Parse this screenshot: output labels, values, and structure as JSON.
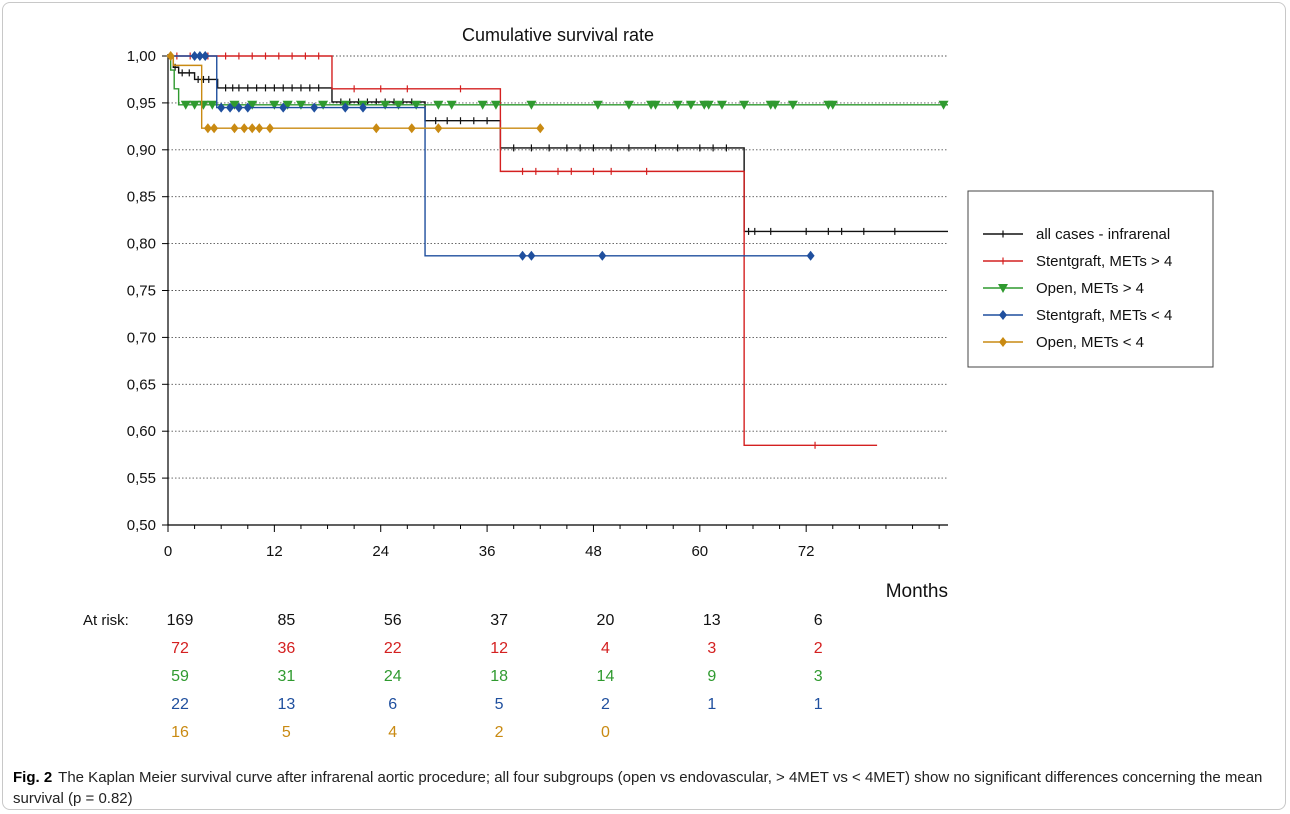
{
  "caption": {
    "label": "Fig. 2",
    "text": "The Kaplan Meier survival curve after infrarenal aortic procedure; all four subgroups (open vs endovascular, > 4MET vs < 4MET) show no significant differences concerning the mean survival (p = 0.82)"
  },
  "chart_data": {
    "type": "line",
    "step": true,
    "title": "Cumulative survival rate",
    "xlabel": "Months",
    "ylabel": "",
    "xlim": [
      0,
      88
    ],
    "ylim": [
      0.5,
      1.0
    ],
    "x_ticks": [
      0,
      12,
      24,
      36,
      48,
      60,
      72
    ],
    "x_tick_labels": [
      "0",
      "12",
      "24",
      "36",
      "48",
      "60",
      "72"
    ],
    "y_ticks": [
      0.5,
      0.55,
      0.6,
      0.65,
      0.7,
      0.75,
      0.8,
      0.85,
      0.9,
      0.95,
      1.0
    ],
    "y_tick_labels": [
      "0,50",
      "0,55",
      "0,60",
      "0,65",
      "0,70",
      "0,75",
      "0,80",
      "0,85",
      "0,90",
      "0,95",
      "1,00"
    ],
    "grid": "dotted horizontal",
    "legend_position": "right",
    "series": [
      {
        "name": "all cases - infrarenal",
        "color": "#111111",
        "marker": "tick",
        "steps": [
          [
            0,
            1.0
          ],
          [
            0.6,
            0.988
          ],
          [
            1.2,
            0.982
          ],
          [
            3.0,
            0.975
          ],
          [
            5.6,
            0.966
          ],
          [
            18.5,
            0.951
          ],
          [
            29.0,
            0.931
          ],
          [
            37.5,
            0.902
          ],
          [
            65.0,
            0.813
          ],
          [
            88.0,
            0.813
          ]
        ],
        "censored": [
          0.8,
          1.6,
          2.4,
          3.4,
          4.0,
          4.6,
          6.5,
          7.3,
          8.0,
          9.0,
          10.0,
          11.0,
          12.0,
          13.0,
          14.0,
          15.0,
          16.0,
          17.0,
          19.5,
          20.5,
          21.5,
          22.5,
          23.5,
          24.5,
          25.5,
          26.5,
          27.5,
          30.2,
          31.5,
          33.0,
          34.5,
          36.0,
          39.0,
          41.0,
          43.0,
          45.0,
          46.5,
          48.0,
          50.0,
          52.0,
          55.0,
          57.5,
          60.0,
          61.5,
          63.0,
          65.5,
          66.2,
          68.0,
          72.0,
          74.5,
          76.0,
          78.5,
          82.0
        ]
      },
      {
        "name": "Stentgraft, METs > 4",
        "color": "#d42020",
        "marker": "tick",
        "steps": [
          [
            0,
            1.0
          ],
          [
            18.5,
            0.965
          ],
          [
            37.5,
            0.877
          ],
          [
            65.0,
            0.585
          ],
          [
            80.0,
            0.585
          ]
        ],
        "censored": [
          1.0,
          2.5,
          4.5,
          6.5,
          8.0,
          9.5,
          11.0,
          12.5,
          14.0,
          15.5,
          17.0,
          21.0,
          24.0,
          27.0,
          33.0,
          40.0,
          41.5,
          44.0,
          45.5,
          48.0,
          50.0,
          54.0,
          73.0
        ]
      },
      {
        "name": "Open, METs > 4",
        "color": "#2f9a2f",
        "marker": "triangle-down",
        "steps": [
          [
            0,
            1.0
          ],
          [
            0.3,
            0.985
          ],
          [
            0.7,
            0.965
          ],
          [
            1.2,
            0.948
          ],
          [
            88.0,
            0.948
          ]
        ],
        "censored": [
          2.0,
          3.0,
          4.0,
          5.0,
          7.5,
          9.5,
          12.0,
          13.5,
          15.0,
          17.5,
          20.0,
          22.0,
          24.5,
          26.0,
          28.0,
          30.5,
          32.0,
          35.5,
          37.0,
          41.0,
          48.5,
          52.0,
          54.5,
          55.0,
          57.5,
          59.0,
          60.5,
          61.0,
          62.5,
          65.0,
          68.0,
          68.5,
          70.5,
          74.5,
          75.0,
          87.5
        ]
      },
      {
        "name": "Stentgraft, METs < 4",
        "color": "#1f4f9e",
        "marker": "diamond",
        "steps": [
          [
            0,
            1.0
          ],
          [
            5.5,
            0.945
          ],
          [
            29.0,
            0.787
          ],
          [
            72.5,
            0.787
          ]
        ],
        "censored": [
          3.0,
          3.6,
          4.2,
          6.0,
          7.0,
          8.0,
          9.0,
          13.0,
          16.5,
          20.0,
          22.0,
          40.0,
          41.0,
          49.0,
          72.5
        ]
      },
      {
        "name": "Open, METs < 4",
        "color": "#c98a12",
        "marker": "diamond",
        "steps": [
          [
            0,
            1.0
          ],
          [
            0.6,
            0.99
          ],
          [
            3.8,
            0.923
          ],
          [
            42.0,
            0.923
          ]
        ],
        "censored": [
          0.3,
          4.5,
          5.2,
          7.5,
          8.6,
          9.5,
          10.3,
          11.5,
          23.5,
          27.5,
          30.5,
          42.0
        ]
      }
    ],
    "at_risk": {
      "label": "At risk:",
      "x": [
        0,
        12,
        24,
        36,
        48,
        60,
        72
      ],
      "rows": [
        {
          "color": "#111111",
          "values": [
            "169",
            "85",
            "56",
            "37",
            "20",
            "13",
            "6"
          ]
        },
        {
          "color": "#d42020",
          "values": [
            "72",
            "36",
            "22",
            "12",
            "4",
            "3",
            "2"
          ]
        },
        {
          "color": "#2f9a2f",
          "values": [
            "59",
            "31",
            "24",
            "18",
            "14",
            "9",
            "3"
          ]
        },
        {
          "color": "#1f4f9e",
          "values": [
            "22",
            "13",
            "6",
            "5",
            "2",
            "1",
            "1"
          ]
        },
        {
          "color": "#c98a12",
          "values": [
            "16",
            "5",
            "4",
            "2",
            "0",
            "",
            ""
          ]
        }
      ]
    }
  }
}
